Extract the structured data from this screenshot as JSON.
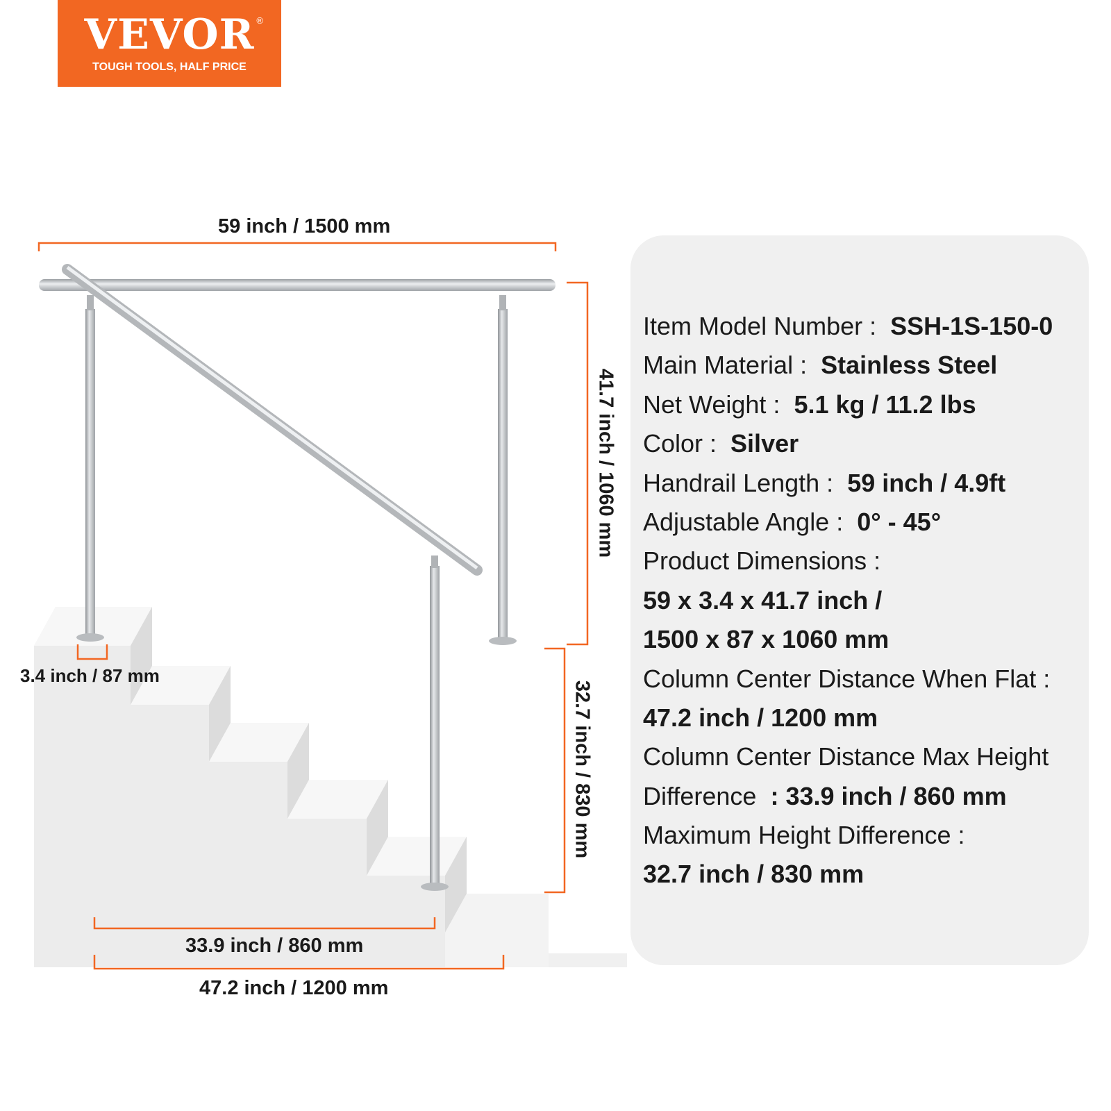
{
  "brand": {
    "name": "VEVOR",
    "registered": "®",
    "tagline": "TOUGH TOOLS, HALF PRICE",
    "color": "#f26722"
  },
  "dimensions": {
    "top_length": "59 inch / 1500 mm",
    "total_height": "41.7 inch / 1060 mm",
    "max_height_diff": "32.7 inch / 830 mm",
    "base_width": "3.4 inch / 87 mm",
    "center_distance_angled": "33.9 inch / 860 mm",
    "center_distance_flat": "47.2 inch / 1200 mm",
    "accent_color": "#f26722"
  },
  "specs": [
    {
      "label": "Item Model Number :",
      "value": "SSH-1S-150-0"
    },
    {
      "label": "Main Material :",
      "value": "Stainless Steel"
    },
    {
      "label": "Net Weight :",
      "value": "5.1 kg / 11.2 lbs"
    },
    {
      "label": "Color :",
      "value": "Silver"
    },
    {
      "label": "Handrail Length :",
      "value": "59 inch / 4.9ft"
    },
    {
      "label": "Adjustable Angle :",
      "value": "0° - 45°"
    },
    {
      "label": "Product Dimensions :",
      "value": ""
    },
    {
      "label": "",
      "value": "59 x 3.4 x 41.7 inch /"
    },
    {
      "label": "",
      "value": "1500 x 87 x 1060 mm"
    },
    {
      "label": "Column Center Distance When Flat :",
      "value": ""
    },
    {
      "label": "",
      "value": "47.2 inch / 1200 mm"
    },
    {
      "label": "Column Center Distance Max Height",
      "value": ""
    },
    {
      "label": "Difference",
      "value": ": 33.9 inch / 860 mm"
    },
    {
      "label": "Maximum Height Difference :",
      "value": ""
    },
    {
      "label": "",
      "value": "32.7 inch / 830 mm"
    }
  ]
}
